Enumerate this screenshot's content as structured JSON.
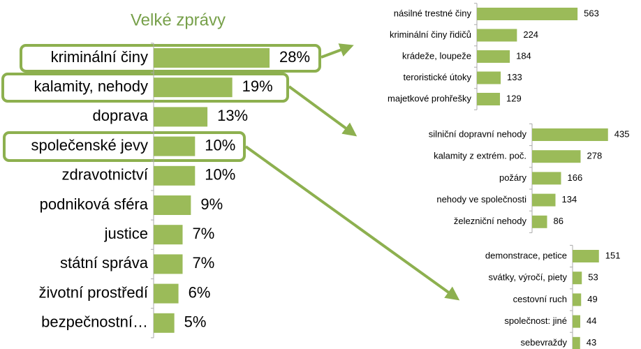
{
  "chart_data": [
    {
      "type": "bar",
      "orientation": "horizontal",
      "title": "Velké zprávy",
      "color": "#9bbb59",
      "categories": [
        "kriminální činy",
        "kalamity, nehody",
        "doprava",
        "společenské jevy",
        "zdravotnictví",
        "podniková sféra",
        "justice",
        "státní správa",
        "životní prostředí",
        "bezpečnostní…"
      ],
      "values": [
        28,
        19,
        13,
        10,
        10,
        9,
        7,
        7,
        6,
        5
      ],
      "value_labels": [
        "28%",
        "19%",
        "13%",
        "10%",
        "10%",
        "9%",
        "7%",
        "7%",
        "6%",
        "5%"
      ]
    },
    {
      "type": "bar",
      "orientation": "horizontal",
      "color": "#9bbb59",
      "categories": [
        "násilné trestné činy",
        "kriminální činy řidičů",
        "krádeže, loupeže",
        "teroristické útoky",
        "majetkové prohřešky"
      ],
      "values": [
        563,
        224,
        184,
        133,
        129
      ]
    },
    {
      "type": "bar",
      "orientation": "horizontal",
      "color": "#9bbb59",
      "categories": [
        "silniční dopravní nehody",
        "kalamity z extrém. poč.",
        "požáry",
        "nehody ve společnosti",
        "železniční nehody"
      ],
      "values": [
        435,
        278,
        166,
        134,
        86
      ]
    },
    {
      "type": "bar",
      "orientation": "horizontal",
      "color": "#9bbb59",
      "categories": [
        "demonstrace, petice",
        "svátky, výročí, piety",
        "cestovní ruch",
        "společnost: jiné",
        "sebevraždy"
      ],
      "values": [
        151,
        53,
        49,
        44,
        43
      ]
    }
  ]
}
